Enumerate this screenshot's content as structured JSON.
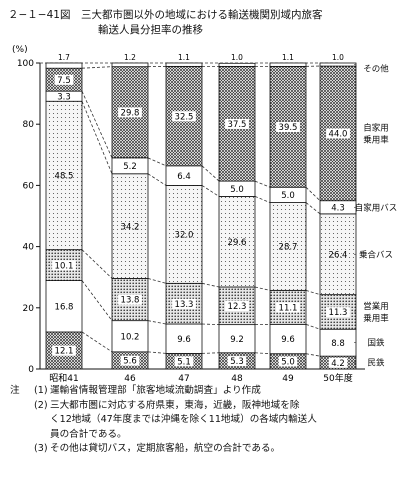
{
  "title": {
    "line1": "２−１−41図　三大都市圏以外の地域における輸送機関別域内旅客",
    "line2": "輸送人員分担率の推移"
  },
  "chart_data": {
    "type": "bar",
    "stacked": true,
    "ylabel": "(%)",
    "ylim": [
      0,
      100
    ],
    "yticks": [
      0,
      20,
      40,
      60,
      80,
      100
    ],
    "categories": [
      "昭和41",
      "46",
      "47",
      "48",
      "49",
      "50年度"
    ],
    "series": [
      {
        "name": "民鉄",
        "values": [
          12.1,
          5.6,
          5.1,
          5.3,
          5.0,
          4.2
        ],
        "fill": "dots-dense"
      },
      {
        "name": "国鉄",
        "values": [
          16.8,
          10.2,
          9.6,
          9.2,
          9.6,
          8.8
        ],
        "fill": "white"
      },
      {
        "name": "営業用乗用車",
        "values": [
          10.1,
          13.8,
          13.3,
          12.3,
          11.1,
          11.3
        ],
        "fill": "dots-medium"
      },
      {
        "name": "乗合バス",
        "values": [
          48.5,
          34.2,
          32.0,
          29.6,
          28.7,
          26.4
        ],
        "fill": "dots-light"
      },
      {
        "name": "自家用バス",
        "values": [
          3.3,
          5.2,
          6.4,
          5.0,
          5.0,
          4.3
        ],
        "fill": "white"
      },
      {
        "name": "自家用乗用車",
        "values": [
          7.5,
          29.8,
          32.5,
          37.5,
          39.5,
          44.0
        ],
        "fill": "dots-dense"
      },
      {
        "name": "その他",
        "values": [
          1.7,
          1.2,
          1.1,
          1.0,
          1.1,
          1.0
        ],
        "fill": "white"
      }
    ],
    "labels": [
      [
        "12.1",
        "5.6",
        "5.1",
        "5.3",
        "5.0",
        "4.2"
      ],
      [
        "16.8",
        "10.2",
        "9.6",
        "9.2",
        "9.6",
        "8.8"
      ],
      [
        "10.1",
        "13.8",
        "13.3",
        "12.3",
        "11.1",
        "11.3"
      ],
      [
        "48.5",
        "34.2",
        "32.0",
        "29.6",
        "28.7",
        "26.4"
      ],
      [
        "3.3",
        "5.2",
        "6.4",
        "5.0",
        "5.0",
        "4.3"
      ],
      [
        "7.5",
        "29.8",
        "32.5",
        "37.5",
        "39.5",
        "44.0"
      ],
      [
        "1.7",
        "1.2",
        "1.1",
        "1.0",
        "1.1",
        "1.0"
      ]
    ],
    "legend_right": [
      "その他",
      "自家用\n乗用車",
      "自家用バス",
      "乗合バス",
      "営業用\n乗用車",
      "国鉄",
      "民鉄"
    ],
    "grid": false
  },
  "notes": {
    "lead": "注",
    "items": [
      {
        "num": "(1)",
        "text": "運輸省情報管理部「旅客地域流動調査」より作成"
      },
      {
        "num": "(2)",
        "text": "三大都市圏に対応する府県東，東海，近畿，阪神地域を除",
        "cont": [
          "く12地域（47年度までは沖縄を除く11地域）の各域内輸送人",
          "員の合計である。"
        ]
      },
      {
        "num": "(3)",
        "text": "その他は貸切バス，定期旅客船，航空の合計である。"
      }
    ]
  }
}
